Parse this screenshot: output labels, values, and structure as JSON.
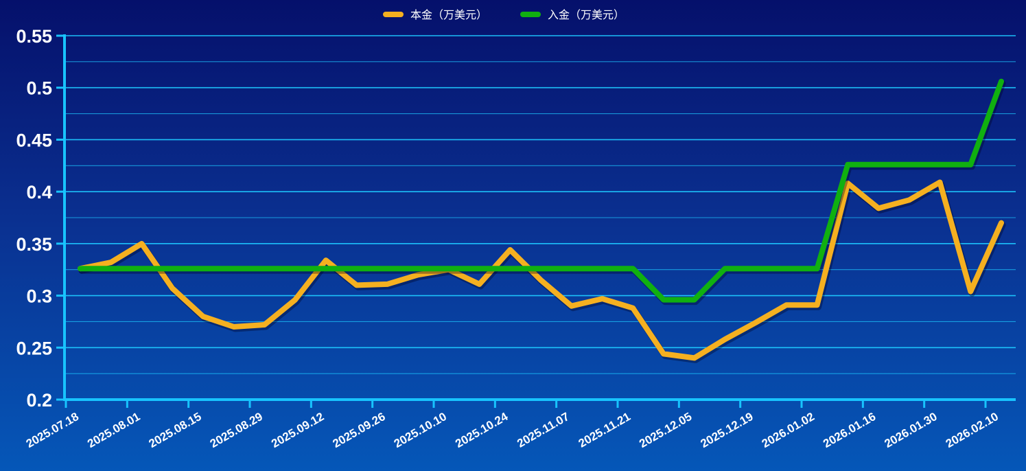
{
  "chart_data": {
    "type": "line",
    "title": "",
    "xlabel": "",
    "ylabel": "",
    "ylim": [
      0.2,
      0.55
    ],
    "y_ticks": [
      "0.2",
      "0.25",
      "0.3",
      "0.35",
      "0.4",
      "0.45",
      "0.5",
      "0.55"
    ],
    "x_tick_labels": [
      "2025.07.18",
      "2025.08.01",
      "2025.08.15",
      "2025.08.29",
      "2025.09.12",
      "2025.09.26",
      "2025.10.10",
      "2025.10.24",
      "2025.11.07",
      "2025.11.21",
      "2025.12.05",
      "2025.12.19",
      "2026.01.02",
      "2026.01.16",
      "2026.01.30",
      "2026.02.10"
    ],
    "grid": true,
    "legend_position": "top-center",
    "series": [
      {
        "name": "本金（万美元）",
        "color": "#f5b020",
        "values": [
          0.326,
          0.332,
          0.35,
          0.307,
          0.28,
          0.27,
          0.272,
          0.296,
          0.334,
          0.31,
          0.311,
          0.32,
          0.325,
          0.311,
          0.344,
          0.315,
          0.29,
          0.297,
          0.288,
          0.244,
          0.24,
          0.258,
          0.274,
          0.291,
          0.291,
          0.408,
          0.384,
          0.392,
          0.409,
          0.304,
          0.37
        ]
      },
      {
        "name": "入金（万美元）",
        "color": "#10b010",
        "values": [
          0.326,
          0.326,
          0.326,
          0.326,
          0.326,
          0.326,
          0.326,
          0.326,
          0.326,
          0.326,
          0.326,
          0.326,
          0.326,
          0.326,
          0.326,
          0.326,
          0.326,
          0.326,
          0.326,
          0.296,
          0.296,
          0.326,
          0.326,
          0.326,
          0.326,
          0.426,
          0.426,
          0.426,
          0.426,
          0.426,
          0.506
        ]
      }
    ]
  }
}
